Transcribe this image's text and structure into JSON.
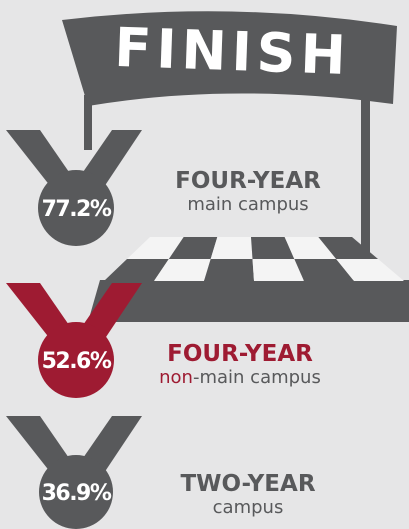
{
  "banner": {
    "title": "FINISH"
  },
  "medals": [
    {
      "value": "77.2%",
      "label": "FOUR-YEAR",
      "sublabel": "main campus"
    },
    {
      "value": "52.6%",
      "label": "FOUR-YEAR",
      "sublabel_prefix": "non",
      "sublabel": "-main campus"
    },
    {
      "value": "36.9%",
      "label": "TWO-YEAR",
      "sublabel": "campus"
    }
  ]
}
